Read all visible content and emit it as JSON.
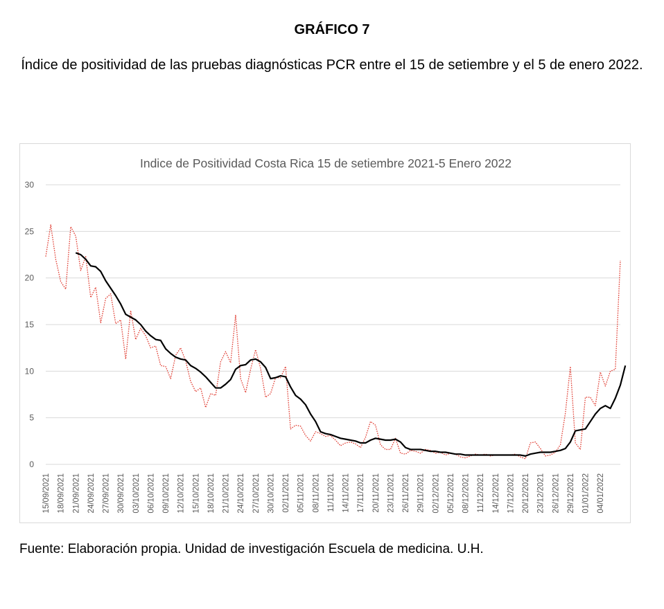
{
  "figure": {
    "label": "GRÁFICO 7",
    "title": "Índice de positividad de las pruebas diagnósticas PCR entre el 15 de setiembre y el 5 de enero 2022.",
    "source": "Fuente: Elaboración propia. Unidad de investigación Escuela de medicina. U.H."
  },
  "chart_data": {
    "type": "line",
    "title": "Indice de Positividad Costa Rica 15 de setiembre 2021-5 Enero 2022",
    "xlabel": "",
    "ylabel": "",
    "ylim": [
      0,
      30
    ],
    "yticks": [
      0,
      5,
      10,
      15,
      20,
      25,
      30
    ],
    "grid": true,
    "legend": "none",
    "x_start": "15/09/2021",
    "x_end": "05/01/2022",
    "x_tick_labels": [
      "15/09/2021",
      "18/09/2021",
      "21/09/2021",
      "24/09/2021",
      "27/09/2021",
      "30/09/2021",
      "03/10/2021",
      "06/10/2021",
      "09/10/2021",
      "12/10/2021",
      "15/10/2021",
      "18/10/2021",
      "21/10/2021",
      "24/10/2021",
      "27/10/2021",
      "30/10/2021",
      "02/11/2021",
      "05/11/2021",
      "08/11/2021",
      "11/11/2021",
      "14/11/2021",
      "17/11/2021",
      "20/11/2021",
      "23/11/2021",
      "26/11/2021",
      "29/11/2021",
      "02/12/2021",
      "05/12/2021",
      "08/12/2021",
      "11/12/2021",
      "14/12/2021",
      "17/12/2021",
      "20/12/2021",
      "23/12/2021",
      "26/12/2021",
      "29/12/2021",
      "01/01/2022",
      "04/01/2022"
    ],
    "series": [
      {
        "style": "dotted",
        "color": "#e03c31",
        "values": [
          22.3,
          25.7,
          22.0,
          19.6,
          18.8,
          25.5,
          24.5,
          20.8,
          22.3,
          17.9,
          19.0,
          15.2,
          17.8,
          18.3,
          15.1,
          15.5,
          11.3,
          16.5,
          13.4,
          14.6,
          13.8,
          12.5,
          12.7,
          10.6,
          10.5,
          9.2,
          11.7,
          12.5,
          11.1,
          8.9,
          7.8,
          8.2,
          6.1,
          7.6,
          7.4,
          11.0,
          12.1,
          10.9,
          16.0,
          9.2,
          7.7,
          10.2,
          12.3,
          10.3,
          7.2,
          7.6,
          9.3,
          9.3,
          10.5,
          3.8,
          4.2,
          4.1,
          3.1,
          2.5,
          3.5,
          3.3,
          3.0,
          3.1,
          2.6,
          2.0,
          2.3,
          2.4,
          2.2,
          1.8,
          2.9,
          4.6,
          4.2,
          2.1,
          1.6,
          1.6,
          2.8,
          1.2,
          1.1,
          1.5,
          1.4,
          1.2,
          1.6,
          1.5,
          1.2,
          1.3,
          1.0,
          1.2,
          1.1,
          0.8,
          0.7,
          0.9,
          1.1,
          1.0,
          1.1,
          0.9,
          1.0,
          1.0,
          1.0,
          1.0,
          1.1,
          0.8,
          0.6,
          2.3,
          2.4,
          1.7,
          0.9,
          1.0,
          1.3,
          2.1,
          5.5,
          10.5,
          2.3,
          1.6,
          7.2,
          7.2,
          6.3,
          9.9,
          8.4,
          10.0,
          10.2,
          21.9
        ]
      },
      {
        "style": "solid",
        "color": "#000000",
        "values": [
          null,
          null,
          null,
          null,
          null,
          null,
          22.7,
          22.5,
          22.0,
          21.3,
          21.2,
          20.7,
          19.7,
          18.9,
          18.1,
          17.2,
          16.1,
          15.8,
          15.5,
          15.0,
          14.3,
          13.8,
          13.4,
          13.3,
          12.4,
          11.9,
          11.5,
          11.3,
          11.2,
          10.6,
          10.3,
          9.9,
          9.4,
          8.8,
          8.2,
          8.2,
          8.6,
          9.1,
          10.2,
          10.6,
          10.7,
          11.2,
          11.3,
          11.0,
          10.4,
          9.2,
          9.3,
          9.5,
          9.4,
          8.3,
          7.4,
          7.0,
          6.4,
          5.4,
          4.6,
          3.5,
          3.3,
          3.2,
          3.0,
          2.8,
          2.7,
          2.6,
          2.5,
          2.3,
          2.3,
          2.6,
          2.8,
          2.7,
          2.6,
          2.6,
          2.7,
          2.4,
          1.8,
          1.6,
          1.6,
          1.6,
          1.5,
          1.4,
          1.4,
          1.3,
          1.3,
          1.2,
          1.1,
          1.1,
          1.0,
          1.0,
          1.0,
          1.0,
          1.0,
          1.0,
          1.0,
          1.0,
          1.0,
          1.0,
          1.0,
          1.0,
          0.9,
          1.1,
          1.2,
          1.3,
          1.3,
          1.3,
          1.4,
          1.5,
          1.7,
          2.4,
          3.6,
          3.7,
          3.8,
          4.6,
          5.4,
          6.0,
          6.3,
          6.0,
          7.1,
          8.5,
          10.6
        ]
      }
    ]
  }
}
